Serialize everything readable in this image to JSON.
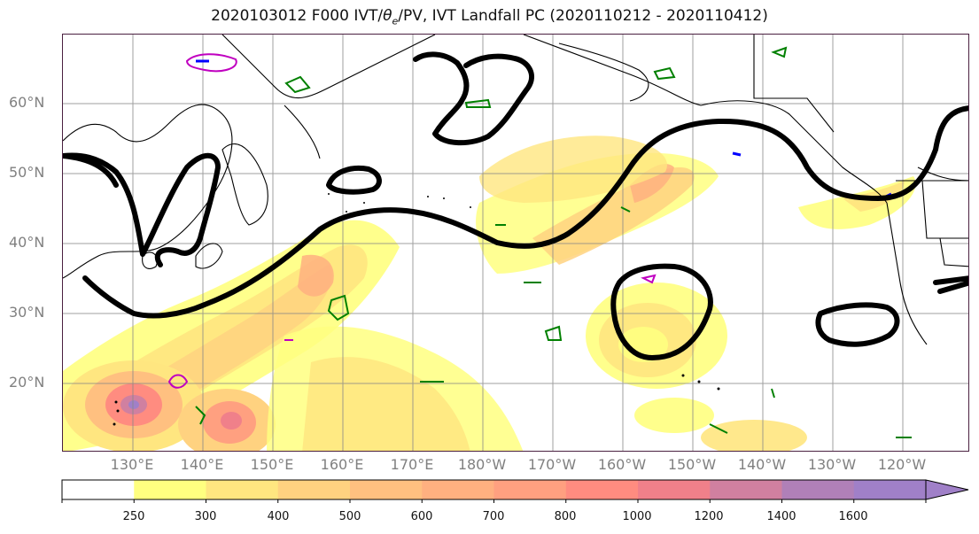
{
  "title": {
    "prefix": "2020103012 F000 IVT/",
    "theta_symbol": "θ",
    "theta_sub": "e",
    "suffix": "/PV, IVT Landfall PC (2020110212 - 2020110412)"
  },
  "lat_labels": [
    "60°N",
    "50°N",
    "40°N",
    "30°N",
    "20°N"
  ],
  "lon_labels": [
    "130°E",
    "140°E",
    "150°E",
    "160°E",
    "170°E",
    "180°W",
    "170°W",
    "160°W",
    "150°W",
    "140°W",
    "130°W",
    "120°W"
  ],
  "colorbar": {
    "labels": [
      "250",
      "300",
      "400",
      "500",
      "600",
      "700",
      "800",
      "1000",
      "1200",
      "1400",
      "1600"
    ],
    "colors": [
      "#ffffff",
      "#ffff80",
      "#ffe680",
      "#ffd280",
      "#ffc080",
      "#ffb080",
      "#ffa080",
      "#ff8c80",
      "#f0808a",
      "#d080a0",
      "#b080b8",
      "#a080c8"
    ],
    "extend": "max"
  },
  "colors": {
    "pv_contour": "#000000",
    "theta_e_contour": "#008000",
    "magenta_contour": "#c000c0",
    "blue_contour": "#0000ff",
    "grid": "#888888"
  }
}
